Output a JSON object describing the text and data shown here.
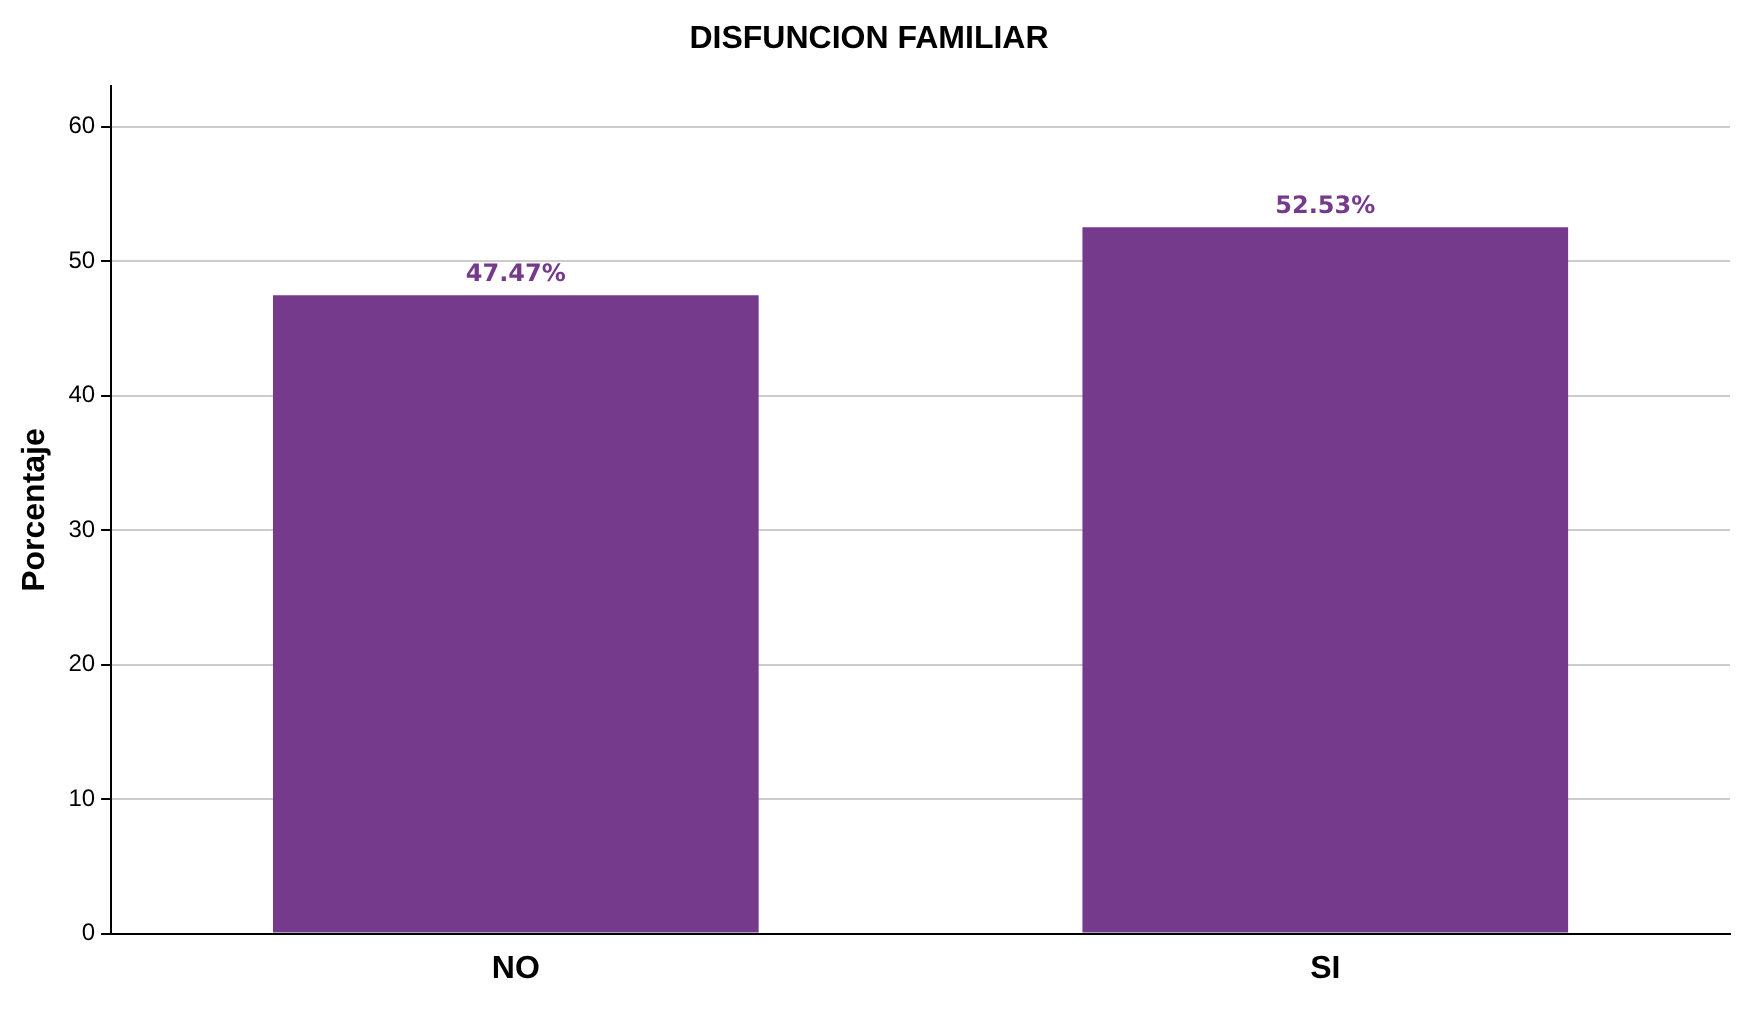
{
  "chart_data": {
    "type": "bar",
    "title": "DISFUNCION FAMILIAR",
    "ylabel": "Porcentaje",
    "categories": [
      "NO",
      "SI"
    ],
    "values": [
      47.47,
      52.53
    ],
    "color": "#763a8c",
    "value_labels": [
      "47.47%",
      "52.53%"
    ],
    "ylim": [
      0,
      63
    ],
    "yticks": [
      0,
      10,
      20,
      30,
      40,
      50,
      60
    ],
    "grid": "y",
    "legend": false
  }
}
